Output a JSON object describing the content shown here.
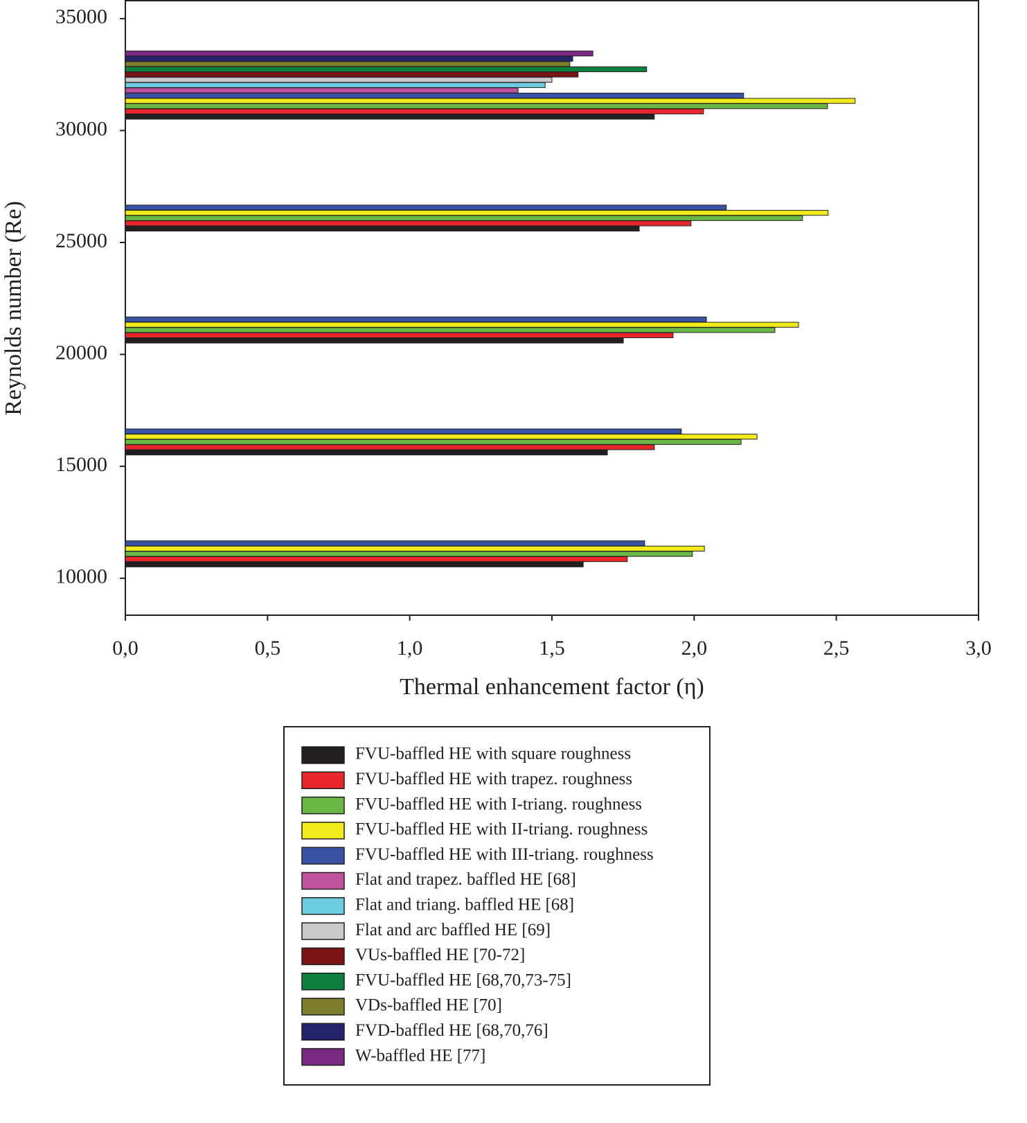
{
  "chart_data": {
    "type": "hbar",
    "xlabel": "Thermal enhancement factor (η)",
    "ylabel": "Reynolds number (Re)",
    "categories": [
      10000,
      15000,
      20000,
      25000,
      30000
    ],
    "xlim": [
      0,
      3
    ],
    "xticks": [
      {
        "value": 0,
        "label": "0,0"
      },
      {
        "value": 0.5,
        "label": "0,5"
      },
      {
        "value": 1,
        "label": "1,0"
      },
      {
        "value": 1.5,
        "label": "1,5"
      },
      {
        "value": 2,
        "label": "2,0"
      },
      {
        "value": 2.5,
        "label": "2,5"
      },
      {
        "value": 3,
        "label": "3,0"
      }
    ],
    "ylim": [
      8350,
      35800
    ],
    "yticks": [
      10000,
      15000,
      20000,
      25000,
      30000,
      35000
    ],
    "series": [
      {
        "name": "FVU-baffled HE with square roughness",
        "color": "#231f20",
        "values": [
          1.61,
          1.695,
          1.751,
          1.807,
          1.86
        ]
      },
      {
        "name": "FVU-baffled HE with trapez. roughness",
        "color": "#e8262b",
        "values": [
          1.765,
          1.86,
          1.926,
          1.989,
          2.033
        ]
      },
      {
        "name": "FVU-baffled HE with I-triang. roughness",
        "color": "#6ab746",
        "values": [
          1.994,
          2.165,
          2.284,
          2.381,
          2.469
        ]
      },
      {
        "name": "FVU-baffled HE with II-triang. roughness",
        "color": "#f2eb1c",
        "values": [
          2.036,
          2.221,
          2.367,
          2.471,
          2.566
        ]
      },
      {
        "name": "FVU-baffled HE with III-triang. roughness",
        "color": "#3953a4",
        "values": [
          1.826,
          1.955,
          2.043,
          2.113,
          2.174
        ]
      },
      {
        "name": "Flat and trapez. baffled HE [68]",
        "color": "#c053a0",
        "values": [
          null,
          null,
          null,
          null,
          1.381
        ]
      },
      {
        "name": "Flat and triang. baffled HE [68]",
        "color": "#6dcde0",
        "values": [
          null,
          null,
          null,
          null,
          1.476
        ]
      },
      {
        "name": "Flat and arc baffled HE [69]",
        "color": "#c8c9cb",
        "values": [
          null,
          null,
          null,
          null,
          1.5
        ]
      },
      {
        "name": "VUs-baffled HE [70-72]",
        "color": "#7c1416",
        "values": [
          null,
          null,
          null,
          null,
          1.592
        ]
      },
      {
        "name": "FVU-baffled HE [68,70,73-75]",
        "color": "#0d7f3f",
        "values": [
          null,
          null,
          null,
          null,
          1.833
        ]
      },
      {
        "name": "VDs-baffled HE [70]",
        "color": "#7d7d2c",
        "values": [
          null,
          null,
          null,
          null,
          1.563
        ]
      },
      {
        "name": "FVD-baffled HE [68,70,76]",
        "color": "#24246e",
        "values": [
          null,
          null,
          null,
          null,
          1.573
        ]
      },
      {
        "name": "W-baffled HE [77]",
        "color": "#7b2a83",
        "values": [
          null,
          null,
          null,
          null,
          1.644
        ]
      }
    ]
  }
}
